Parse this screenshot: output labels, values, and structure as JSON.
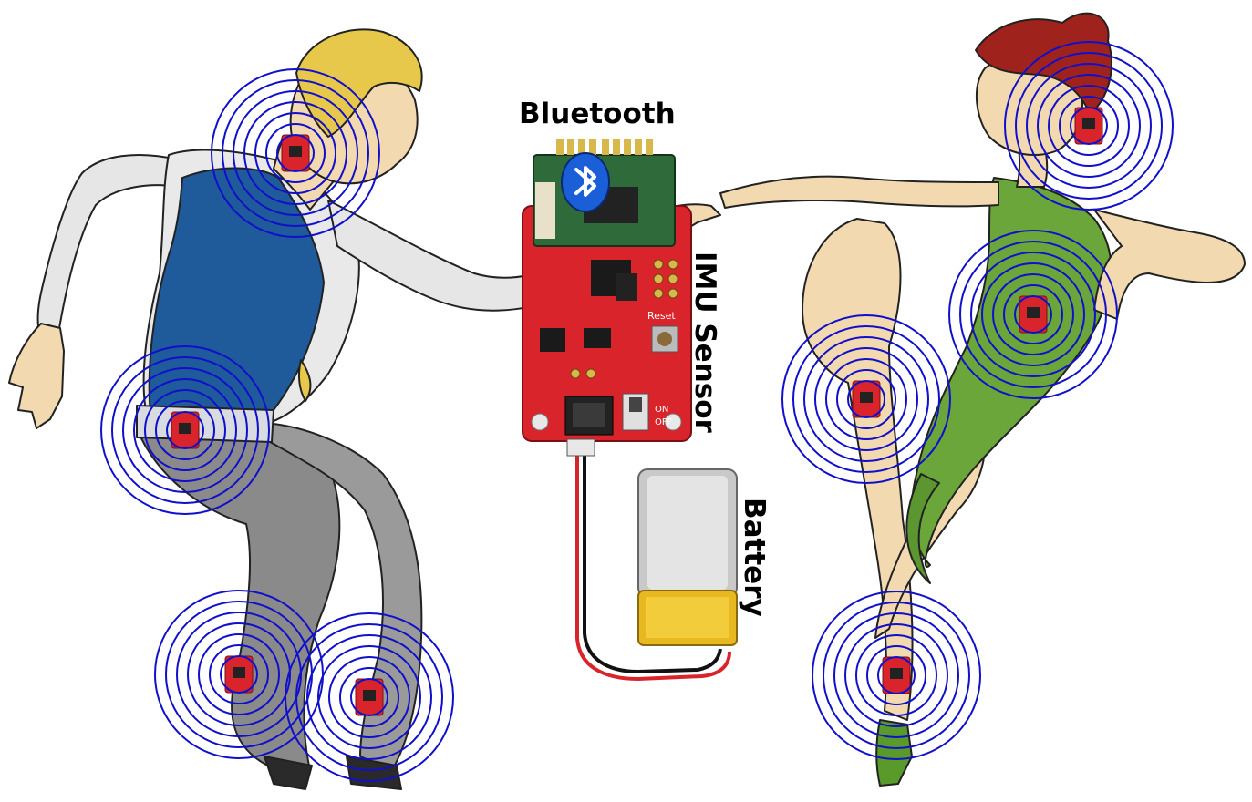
{
  "labels": {
    "bluetooth": "Bluetooth",
    "imu_sensor": "IMU Sensor",
    "battery": "Battery"
  },
  "board": {
    "reset": "Reset",
    "on": "ON",
    "off": "OFF"
  },
  "colors": {
    "ring": "#1010cc",
    "board": "#d8242a",
    "bluetooth_badge": "#1a5fd8",
    "man_vest": "#1f5a9a",
    "man_pants": "#8a8a8a",
    "woman_dress": "#6aa63a",
    "woman_hair": "#a0221c",
    "man_hair": "#e8c84a",
    "skin": "#f3d9b0"
  },
  "icons": [
    "bluetooth-icon"
  ]
}
